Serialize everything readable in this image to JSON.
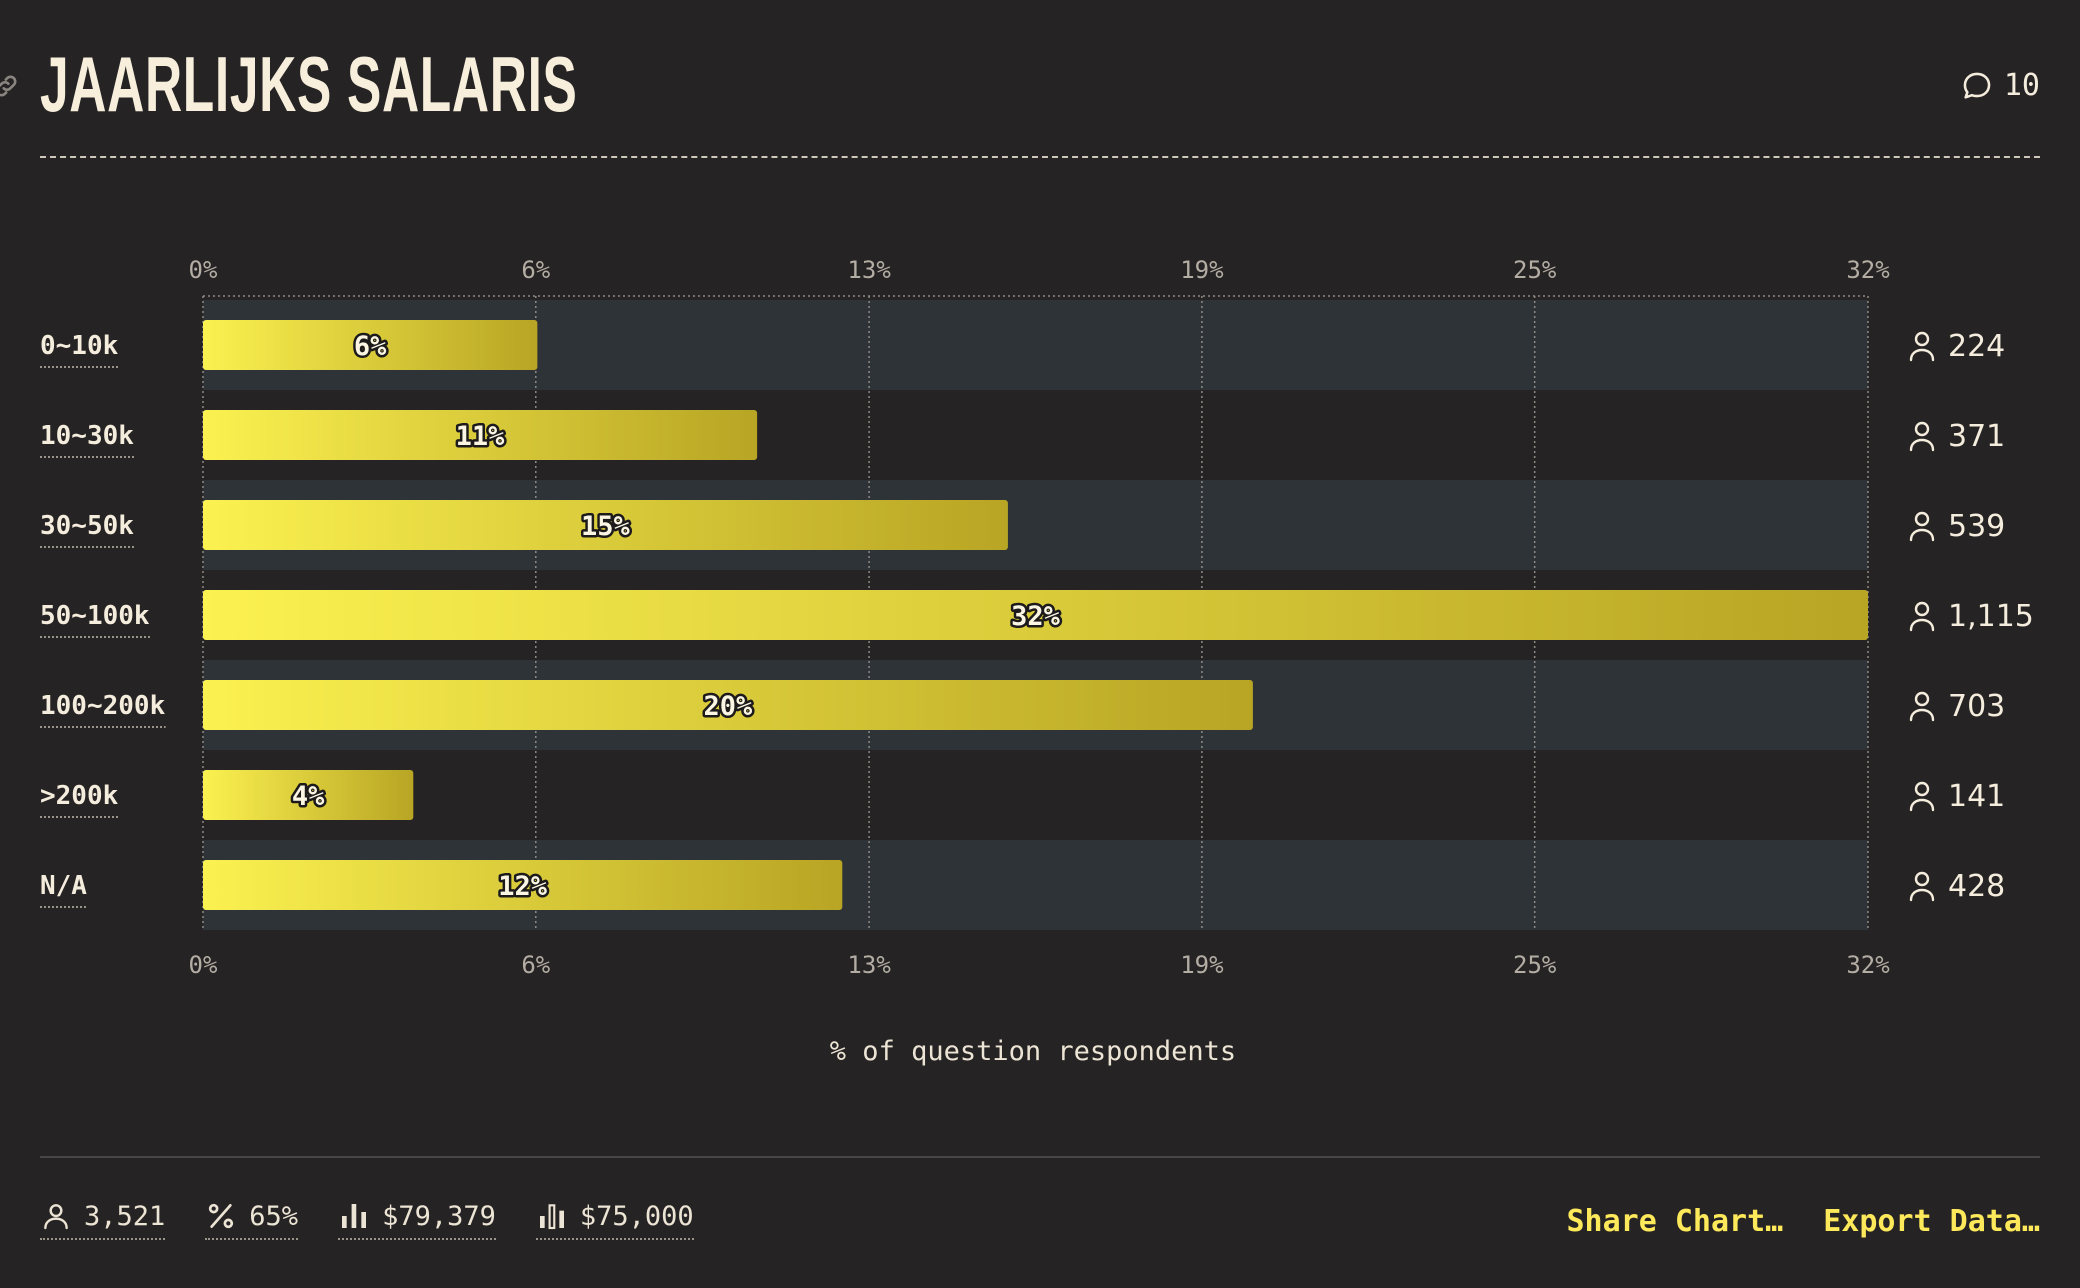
{
  "header": {
    "title": "JAARLIJKS SALARIS",
    "comment_count": "10"
  },
  "chart_data": {
    "type": "bar",
    "orientation": "horizontal",
    "categories": [
      "0~10k",
      "10~30k",
      "30~50k",
      "50~100k",
      "100~200k",
      ">200k",
      "N/A"
    ],
    "values": [
      6.36,
      10.54,
      15.31,
      31.67,
      19.97,
      4.0,
      12.16
    ],
    "value_labels": [
      "6%",
      "11%",
      "15%",
      "32%",
      "20%",
      "4%",
      "12%"
    ],
    "counts": [
      "224",
      "371",
      "539",
      "1,115",
      "703",
      "141",
      "428"
    ],
    "x_ticks": [
      0,
      6.33,
      12.67,
      19,
      25.33,
      31.67
    ],
    "x_tick_labels": [
      "0%",
      "6%",
      "13%",
      "19%",
      "25%",
      "32%"
    ],
    "xlim": [
      0,
      31.67
    ],
    "xlabel": "% of question respondents",
    "grid": true,
    "colors": {
      "bar_start": "#fbf150",
      "bar_end": "#b8a524",
      "band": "#2d3337",
      "background": "#262324"
    }
  },
  "footer": {
    "respondents": "3,521",
    "response_rate": "65%",
    "mean": "$79,379",
    "median": "$75,000",
    "share_label": "Share Chart…",
    "export_label": "Export Data…"
  }
}
